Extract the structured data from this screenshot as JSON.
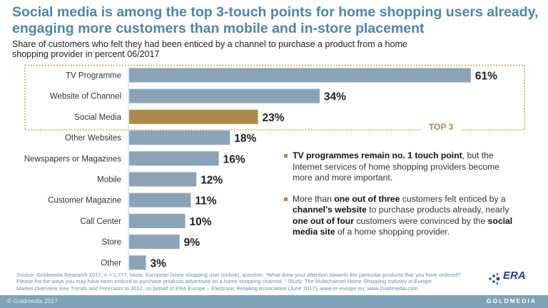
{
  "header": {
    "title": "Social media is among the top 3-touch points for home shopping users already, engaging more customers than mobile and in-store placement",
    "subtitle": "Share of customers who felt they had been enticed by a channel to purchase a product from a home shopping provider in percent 06/2017"
  },
  "chart_data": {
    "type": "bar",
    "orientation": "horizontal",
    "categories": [
      "TV Programme",
      "Website of Channel",
      "Social Media",
      "Other Websites",
      "Newspapers or Magazines",
      "Mobile",
      "Customer Magazine",
      "Call Center",
      "Store",
      "Other"
    ],
    "values": [
      61,
      34,
      23,
      18,
      16,
      12,
      11,
      10,
      9,
      3
    ],
    "labels": [
      "61%",
      "34%",
      "23%",
      "18%",
      "16%",
      "12%",
      "11%",
      "10%",
      "9%",
      "3%"
    ],
    "highlight_index": 2,
    "highlight_label": "TOP 3",
    "colors": {
      "bar": "#8aa3b6",
      "highlight": "#b08a4a",
      "box": "#c8a36a"
    }
  },
  "notes": {
    "n1": {
      "b1": "TV programmes remain no. 1 touch point",
      "t1": ", but the Internet services of home shopping providers become more and more important."
    },
    "n2": {
      "t1": "More than ",
      "b1": "one out of three",
      "t2": " customers felt enticed by a ",
      "b2": "channel’s website",
      "t3": " to purchase products already, nearly ",
      "b3": "one out of four",
      "t4": " customers were convinced by the ",
      "b4": "social media site",
      "t5": " of a home shopping provider."
    }
  },
  "source": {
    "line1": "Source: Goldmedia Research 2017, n = 1,777, basis: European home shopping user (online), question: “What drew your attention towards the particular products that you have ordered?",
    "line2": "Please list the ways you may have been enticed to purchase products advertised on a home shopping channel. ” Study: The Multichannel Home Shopping Industry in Europe.",
    "line3": "Market Overview, Key Trends and Forecasts to 2022, on behalf of ERA Europe – Electronic Retailing Association (June 2017), www.er-europe.eu, www.Goldmedia.com"
  },
  "footer": {
    "copyright": "© Goldmedia 2017",
    "brand": "GOLDMEDIA"
  },
  "logo": {
    "text": "ERA"
  }
}
